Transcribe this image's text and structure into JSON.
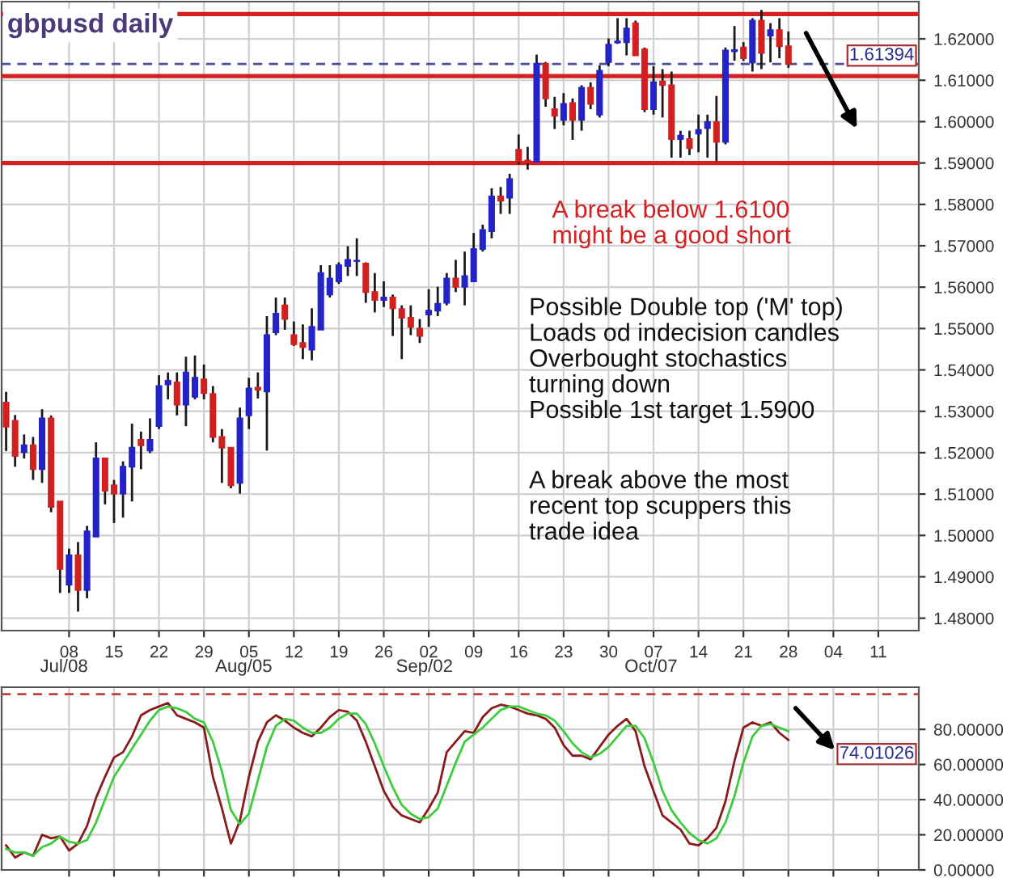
{
  "chart_data": [
    {
      "type": "candlestick",
      "title": "gbpusd daily",
      "categories": [
        null,
        null,
        null,
        null,
        null,
        null,
        null,
        "08",
        null,
        null,
        null,
        null,
        "15",
        null,
        null,
        null,
        null,
        "22",
        null,
        null,
        null,
        null,
        "29",
        null,
        null,
        null,
        null,
        "05",
        null,
        null,
        null,
        null,
        "12",
        null,
        null,
        null,
        null,
        "19",
        null,
        null,
        null,
        null,
        "26",
        null,
        null,
        null,
        null,
        "02",
        null,
        null,
        null,
        null,
        "09",
        null,
        null,
        null,
        null,
        "16",
        null,
        null,
        null,
        null,
        "23",
        null,
        null,
        null,
        null,
        "30",
        null,
        null,
        null,
        null,
        "07",
        null,
        null,
        null,
        null,
        "14",
        null,
        null,
        null,
        null,
        "21",
        null,
        null,
        null,
        null,
        "28",
        null,
        null,
        null,
        null,
        "04",
        null,
        null,
        null,
        null,
        "11",
        null,
        null,
        null,
        null
      ],
      "ohlc": [
        [
          1.5321,
          1.5347,
          1.5204,
          1.5263
        ],
        [
          1.5277,
          1.5291,
          1.5166,
          1.5192
        ],
        [
          1.5201,
          1.5244,
          1.5186,
          1.5218
        ],
        [
          1.5218,
          1.5238,
          1.5134,
          1.516
        ],
        [
          1.516,
          1.5305,
          1.5127,
          1.5283
        ],
        [
          1.5283,
          1.529,
          1.5056,
          1.5069
        ],
        [
          1.5082,
          1.5082,
          1.4861,
          1.4919
        ],
        [
          1.4881,
          1.4968,
          1.4861,
          1.4952
        ],
        [
          1.4952,
          1.4984,
          1.4816,
          1.4868
        ],
        [
          1.4868,
          1.5023,
          1.4848,
          1.501
        ],
        [
          1.4997,
          1.5225,
          1.4997,
          1.5186
        ],
        [
          1.5186,
          1.5186,
          1.5075,
          1.5108
        ],
        [
          1.5121,
          1.5134,
          1.503,
          1.5101
        ],
        [
          1.5101,
          1.5179,
          1.5043,
          1.5166
        ],
        [
          1.5166,
          1.527,
          1.5082,
          1.5212
        ],
        [
          1.5231,
          1.5251,
          1.516,
          1.5218
        ],
        [
          1.5205,
          1.5283,
          1.5199,
          1.5231
        ],
        [
          1.5264,
          1.5387,
          1.5257,
          1.5361
        ],
        [
          1.5365,
          1.5394,
          1.5329,
          1.5374
        ],
        [
          1.537,
          1.5394,
          1.529,
          1.5316
        ],
        [
          1.5316,
          1.5432,
          1.5264,
          1.5394
        ],
        [
          1.5335,
          1.5435,
          1.5329,
          1.5381
        ],
        [
          1.5377,
          1.5413,
          1.5329,
          1.5344
        ],
        [
          1.5342,
          1.5361,
          1.5225,
          1.5238
        ],
        [
          1.5238,
          1.5257,
          1.5127,
          1.5212
        ],
        [
          1.5212,
          1.5212,
          1.5114,
          1.5121
        ],
        [
          1.5127,
          1.5309,
          1.5101,
          1.5283
        ],
        [
          1.529,
          1.5381,
          1.5257,
          1.5355
        ],
        [
          1.5357,
          1.5394,
          1.5331,
          1.5352
        ],
        [
          1.5348,
          1.553,
          1.5205,
          1.5484
        ],
        [
          1.5491,
          1.5575,
          1.5484,
          1.5536
        ],
        [
          1.5556,
          1.5575,
          1.5497,
          1.5523
        ],
        [
          1.5484,
          1.5517,
          1.5458,
          1.5462
        ],
        [
          1.5465,
          1.551,
          1.5426,
          1.5455
        ],
        [
          1.5449,
          1.5549,
          1.5423,
          1.5504
        ],
        [
          1.5497,
          1.5653,
          1.5497,
          1.5634
        ],
        [
          1.5582,
          1.5653,
          1.5575,
          1.5621
        ],
        [
          1.5614,
          1.566,
          1.5608,
          1.5653
        ],
        [
          1.5651,
          1.5699,
          1.5627,
          1.5666
        ],
        [
          1.5663,
          1.5718,
          1.5627,
          1.5664
        ],
        [
          1.5657,
          1.566,
          1.5562,
          1.5588
        ],
        [
          1.5588,
          1.5634,
          1.5539,
          1.5569
        ],
        [
          1.5569,
          1.5614,
          1.5552,
          1.5575
        ],
        [
          1.5575,
          1.5582,
          1.5482,
          1.5549
        ],
        [
          1.5547,
          1.5556,
          1.5426,
          1.5526
        ],
        [
          1.5526,
          1.5556,
          1.5484,
          1.5504
        ],
        [
          1.55,
          1.5523,
          1.5465,
          1.5482
        ],
        [
          1.5534,
          1.5595,
          1.5504,
          1.5543
        ],
        [
          1.5543,
          1.5601,
          1.553,
          1.556
        ],
        [
          1.5562,
          1.5634,
          1.5556,
          1.5621
        ],
        [
          1.5621,
          1.5666,
          1.5588,
          1.5601
        ],
        [
          1.5601,
          1.5686,
          1.5556,
          1.5627
        ],
        [
          1.5614,
          1.5731,
          1.5612,
          1.5692
        ],
        [
          1.5692,
          1.5751,
          1.5686,
          1.5738
        ],
        [
          1.5735,
          1.5839,
          1.5718,
          1.5819
        ],
        [
          1.5819,
          1.5842,
          1.5777,
          1.5809
        ],
        [
          1.5816,
          1.5874,
          1.5777,
          1.5861
        ],
        [
          1.5932,
          1.5969,
          1.5897,
          1.5904
        ],
        [
          1.5906,
          1.5939,
          1.5884,
          1.5901
        ],
        [
          1.5903,
          1.6162,
          1.5903,
          1.614
        ],
        [
          1.614,
          1.6144,
          1.6036,
          1.6056
        ],
        [
          1.603,
          1.606,
          1.5982,
          1.6014
        ],
        [
          1.6004,
          1.6069,
          1.5991,
          1.6043
        ],
        [
          1.6045,
          1.6056,
          1.5956,
          1.6004
        ],
        [
          1.6004,
          1.6088,
          1.5978,
          1.6082
        ],
        [
          1.6082,
          1.6095,
          1.603,
          1.6043
        ],
        [
          1.6017,
          1.6136,
          1.601,
          1.6123
        ],
        [
          1.6144,
          1.6201,
          1.6134,
          1.6186
        ],
        [
          1.6191,
          1.625,
          1.6188,
          1.6194
        ],
        [
          1.6192,
          1.625,
          1.616,
          1.6225
        ],
        [
          1.6238,
          1.6244,
          1.616,
          1.616
        ],
        [
          1.6175,
          1.6179,
          1.6023,
          1.603
        ],
        [
          1.603,
          1.6134,
          1.6017,
          1.6095
        ],
        [
          1.6097,
          1.6127,
          1.601,
          1.6088
        ],
        [
          1.6088,
          1.6121,
          1.5913,
          1.5958
        ],
        [
          1.5958,
          1.5978,
          1.5913,
          1.5966
        ],
        [
          1.5958,
          1.5978,
          1.5919,
          1.5936
        ],
        [
          1.5971,
          1.6017,
          1.5926,
          1.598
        ],
        [
          1.5984,
          1.6017,
          1.5913,
          1.5999
        ],
        [
          1.5999,
          1.6062,
          1.5904,
          1.5951
        ],
        [
          1.5951,
          1.6179,
          1.5945,
          1.6172
        ],
        [
          1.617,
          1.6231,
          1.6147,
          1.6173
        ],
        [
          1.6179,
          1.6192,
          1.6147,
          1.6153
        ],
        [
          1.6143,
          1.625,
          1.6121,
          1.6244
        ],
        [
          1.6244,
          1.627,
          1.6127,
          1.6166
        ],
        [
          1.6208,
          1.6238,
          1.6143,
          1.6221
        ],
        [
          1.6221,
          1.625,
          1.6153,
          1.6182
        ],
        [
          1.6182,
          1.6218,
          1.613,
          1.6139
        ],
        null,
        null,
        null,
        null,
        null,
        null,
        null,
        null,
        null,
        null,
        null,
        null,
        null,
        null
      ],
      "colors": [
        "#d02020",
        "#d02020",
        "#2323c8",
        "#d02020",
        "#2323c8",
        "#d02020",
        "#d02020",
        "#2323c8",
        "#d02020",
        "#2323c8",
        "#2323c8",
        "#d02020",
        "#d02020",
        "#2323c8",
        "#2323c8",
        "#d02020",
        "#2323c8",
        "#2323c8",
        "#2323c8",
        "#d02020",
        "#2323c8",
        "#2323c8",
        "#d02020",
        "#d02020",
        "#d02020",
        "#d02020",
        "#2323c8",
        "#2323c8",
        "#d02020",
        "#2323c8",
        "#2323c8",
        "#d02020",
        "#d02020",
        "#d02020",
        "#2323c8",
        "#2323c8",
        "#2323c8",
        "#2323c8",
        "#2323c8",
        "#2323c8",
        "#d02020",
        "#d02020",
        "#2323c8",
        "#d02020",
        "#d02020",
        "#d02020",
        "#d02020",
        "#2323c8",
        "#2323c8",
        "#2323c8",
        "#d02020",
        "#2323c8",
        "#2323c8",
        "#2323c8",
        "#2323c8",
        "#d02020",
        "#2323c8",
        "#d02020",
        "#d02020",
        "#2323c8",
        "#d02020",
        "#d02020",
        "#2323c8",
        "#d02020",
        "#2323c8",
        "#d02020",
        "#2323c8",
        "#2323c8",
        "#2323c8",
        "#2323c8",
        "#d02020",
        "#d02020",
        "#2323c8",
        "#d02020",
        "#d02020",
        "#2323c8",
        "#d02020",
        "#2323c8",
        "#2323c8",
        "#d02020",
        "#2323c8",
        "#2323c8",
        "#d02020",
        "#2323c8",
        "#d02020",
        "#2323c8",
        "#d02020",
        "#d02020",
        null,
        null,
        null,
        null,
        null,
        null,
        null,
        null,
        null,
        null,
        null,
        null,
        null,
        null
      ],
      "ylim": [
        1.477,
        1.629
      ],
      "yticks": [
        {
          "value": 1.48,
          "label": "1.48000"
        },
        {
          "value": 1.49,
          "label": "1.49000"
        },
        {
          "value": 1.5,
          "label": "1.50000"
        },
        {
          "value": 1.51,
          "label": "1.51000"
        },
        {
          "value": 1.52,
          "label": "1.52000"
        },
        {
          "value": 1.53,
          "label": "1.53000"
        },
        {
          "value": 1.54,
          "label": "1.54000"
        },
        {
          "value": 1.55,
          "label": "1.55000"
        },
        {
          "value": 1.56,
          "label": "1.56000"
        },
        {
          "value": 1.57,
          "label": "1.57000"
        },
        {
          "value": 1.58,
          "label": "1.58000"
        },
        {
          "value": 1.59,
          "label": "1.59000"
        },
        {
          "value": 1.6,
          "label": "1.60000"
        },
        {
          "value": 1.61,
          "label": "1.61000"
        },
        {
          "value": 1.62,
          "label": "1.62000"
        }
      ],
      "grid": true,
      "ref_lines": [
        {
          "axis": "y",
          "value": 1.61394,
          "label": "1.61394",
          "color": "#4b4b9b",
          "line_style": "dashed"
        },
        {
          "axis": "y",
          "value": 1.626,
          "color": "#d42020"
        },
        {
          "axis": "y",
          "value": 1.611,
          "color": "#d42020"
        },
        {
          "axis": "y",
          "value": 1.59,
          "color": "#d42020"
        }
      ],
      "annotations": [
        "Jul/08",
        "Aug/05",
        "Sep/02",
        "Oct/07",
        "A break below 1.6100\nmight be a good short",
        "Possible Double top ('M' top)\nLoads od indecision candles\nOverbought stochastics\nturning down\nPossible 1st target 1.5900",
        "A break above the most\nrecent top scuppers this\ntrade idea"
      ]
    },
    {
      "type": "line",
      "categories": [
        null,
        null,
        null,
        null,
        null,
        null,
        null,
        "08",
        null,
        null,
        null,
        null,
        "15",
        null,
        null,
        null,
        null,
        "22",
        null,
        null,
        null,
        null,
        "29",
        null,
        null,
        null,
        null,
        "05",
        null,
        null,
        null,
        null,
        "12",
        null,
        null,
        null,
        null,
        "19",
        null,
        null,
        null,
        null,
        "26",
        null,
        null,
        null,
        null,
        "02",
        null,
        null,
        null,
        null,
        "09",
        null,
        null,
        null,
        null,
        "16",
        null,
        null,
        null,
        null,
        "23",
        null,
        null,
        null,
        null,
        "30",
        null,
        null,
        null,
        null,
        "07",
        null,
        null,
        null,
        null,
        "14",
        null,
        null,
        null,
        null,
        "21",
        null,
        null,
        null,
        null,
        "28",
        null,
        null,
        null,
        null,
        "04",
        null,
        null,
        null,
        null,
        "11",
        null,
        null,
        null,
        null
      ],
      "tick_labels": "y",
      "series": [
        {
          "color": "#8b1a1a",
          "values": [
            14,
            7,
            10,
            8,
            20,
            18,
            19,
            11,
            15,
            25,
            41,
            53,
            64,
            67,
            76,
            88,
            91,
            93,
            95,
            88,
            86,
            84,
            81,
            53,
            35,
            15,
            28,
            53,
            73,
            84,
            88,
            85,
            81,
            78,
            76,
            81,
            87,
            91,
            90,
            85,
            73,
            59,
            45,
            36,
            31,
            29,
            27,
            35,
            44,
            67,
            73,
            79,
            78,
            87,
            92,
            94,
            93,
            91,
            89,
            88,
            86,
            81,
            71,
            65,
            65,
            63,
            70,
            77,
            82,
            86,
            79,
            59,
            45,
            31,
            27,
            23,
            15,
            14,
            18,
            24,
            39,
            62,
            81,
            84,
            82,
            84,
            78,
            74,
            null,
            null,
            null,
            null,
            null,
            null,
            null,
            null,
            null,
            null,
            null,
            null,
            null,
            null
          ]
        },
        {
          "color": "#3ccc3c",
          "values": [
            12,
            10,
            10,
            8,
            13,
            15,
            19,
            16,
            15,
            17,
            27,
            40,
            53,
            61,
            69,
            77,
            85,
            91,
            93,
            92,
            90,
            86,
            84,
            73,
            56,
            34,
            26,
            32,
            51,
            70,
            82,
            86,
            85,
            81,
            78,
            78,
            81,
            86,
            89,
            89,
            83,
            72,
            59,
            47,
            37,
            32,
            29,
            30,
            35,
            48,
            61,
            73,
            77,
            81,
            86,
            91,
            93,
            93,
            91,
            89,
            88,
            85,
            79,
            72,
            67,
            64,
            66,
            70,
            76,
            82,
            82,
            75,
            61,
            45,
            34,
            27,
            21,
            17,
            15,
            18,
            27,
            42,
            61,
            76,
            82,
            83,
            81,
            79,
            null,
            null,
            null,
            null,
            null,
            null,
            null,
            null,
            null,
            null,
            null,
            null,
            null,
            null
          ]
        }
      ],
      "ylim": [
        0,
        104
      ],
      "yticks": [
        {
          "value": 0,
          "label": "0.00000"
        },
        {
          "value": 20,
          "label": "20.00000"
        },
        {
          "value": 40,
          "label": "40.00000"
        },
        {
          "value": 60,
          "label": "60.00000"
        },
        {
          "value": 80,
          "label": "80.00000"
        }
      ],
      "grid": true,
      "ref_lines": [
        {
          "axis": "y",
          "value": 100,
          "color": "#c04040",
          "line_style": "dashed"
        }
      ],
      "annotations": [
        "74.01026"
      ]
    }
  ]
}
